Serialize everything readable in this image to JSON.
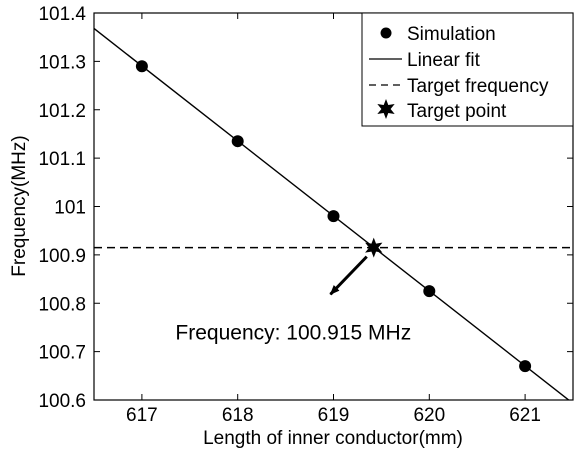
{
  "chart_data": {
    "type": "line",
    "title": "",
    "xlabel": "Length of inner conductor(mm)",
    "ylabel": "Frequency(MHz)",
    "xlim": [
      616.5,
      621.5
    ],
    "ylim": [
      100.6,
      101.4
    ],
    "xticks": [
      617,
      618,
      619,
      620,
      621
    ],
    "yticks": [
      100.6,
      100.7,
      100.8,
      100.9,
      101,
      101.1,
      101.2,
      101.3,
      101.4
    ],
    "ytick_labels": [
      "100.6",
      "100.7",
      "100.8",
      "100.9",
      "101",
      "101.1",
      "101.2",
      "101.3",
      "101.4"
    ],
    "grid": false,
    "legend_position": "top-right",
    "series": [
      {
        "name": "Simulation",
        "kind": "scatter",
        "marker": "circle",
        "x": [
          617,
          618,
          619,
          620,
          621
        ],
        "y": [
          101.29,
          101.135,
          100.98,
          100.825,
          100.67
        ]
      },
      {
        "name": "Linear fit",
        "kind": "line",
        "style": "solid",
        "x": [
          616.5,
          621.5
        ],
        "y": [
          101.368,
          100.593
        ]
      },
      {
        "name": "Target frequency",
        "kind": "line",
        "style": "dashed",
        "x": [
          616.5,
          621.5
        ],
        "y": [
          100.915,
          100.915
        ]
      },
      {
        "name": "Target point",
        "kind": "scatter",
        "marker": "star",
        "x": [
          619.42
        ],
        "y": [
          100.915
        ]
      }
    ],
    "annotations": [
      {
        "text": "Frequency: 100.915 MHz",
        "point_x": 619.42,
        "point_y": 100.915,
        "text_x": 617.35,
        "text_y": 100.74
      }
    ]
  }
}
